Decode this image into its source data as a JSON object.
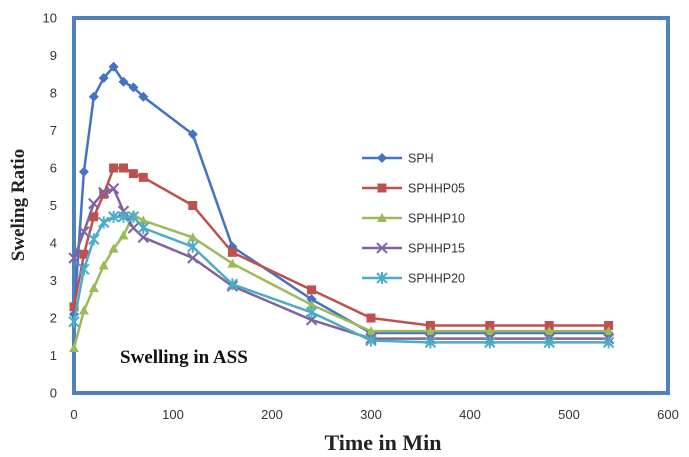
{
  "chart_data": {
    "type": "line",
    "title": "",
    "xlabel": "Time in Min",
    "ylabel": "Sweling Ratio",
    "annotation": "Swelling in ASS",
    "xlim": [
      0,
      600
    ],
    "ylim": [
      0,
      10
    ],
    "xticks": [
      "0",
      "100",
      "200",
      "300",
      "400",
      "500",
      "600"
    ],
    "yticks": [
      "0",
      "1",
      "2",
      "3",
      "4",
      "5",
      "6",
      "7",
      "8",
      "9",
      "10"
    ],
    "grid": false,
    "legend_position": "center-right",
    "series": [
      {
        "name": "SPH",
        "color": "#4472C4",
        "marker": "diamond",
        "x": [
          0,
          10,
          20,
          30,
          40,
          50,
          60,
          70,
          120,
          160,
          240,
          300,
          360,
          420,
          480,
          540
        ],
        "y": [
          2.1,
          5.9,
          7.9,
          8.4,
          8.7,
          8.3,
          8.15,
          7.9,
          6.9,
          3.9,
          2.5,
          1.6,
          1.6,
          1.6,
          1.6,
          1.6
        ]
      },
      {
        "name": "SPHHP05",
        "color": "#C0504D",
        "marker": "square",
        "x": [
          0,
          10,
          20,
          30,
          40,
          50,
          60,
          70,
          120,
          160,
          240,
          300,
          360,
          420,
          480,
          540
        ],
        "y": [
          2.3,
          3.7,
          4.7,
          5.3,
          6.0,
          6.0,
          5.85,
          5.75,
          5.0,
          3.75,
          2.75,
          2.0,
          1.8,
          1.8,
          1.8,
          1.8
        ]
      },
      {
        "name": "SPHHP10",
        "color": "#9BBB59",
        "marker": "triangle",
        "x": [
          0,
          10,
          20,
          30,
          40,
          50,
          60,
          70,
          120,
          160,
          240,
          300,
          360,
          420,
          480,
          540
        ],
        "y": [
          1.2,
          2.2,
          2.8,
          3.4,
          3.85,
          4.2,
          4.75,
          4.6,
          4.15,
          3.45,
          2.35,
          1.65,
          1.65,
          1.65,
          1.65,
          1.65
        ]
      },
      {
        "name": "SPHHP15",
        "color": "#8064A2",
        "marker": "x",
        "x": [
          0,
          10,
          20,
          30,
          40,
          50,
          60,
          70,
          120,
          160,
          240,
          300,
          360,
          420,
          480,
          540
        ],
        "y": [
          3.6,
          4.3,
          5.05,
          5.35,
          5.45,
          4.85,
          4.4,
          4.15,
          3.6,
          2.85,
          1.95,
          1.45,
          1.45,
          1.45,
          1.45,
          1.45
        ]
      },
      {
        "name": "SPHHP20",
        "color": "#4BACC6",
        "marker": "star",
        "x": [
          0,
          10,
          20,
          30,
          40,
          50,
          60,
          70,
          120,
          160,
          240,
          300,
          360,
          420,
          480,
          540
        ],
        "y": [
          1.9,
          3.3,
          4.1,
          4.55,
          4.7,
          4.7,
          4.7,
          4.4,
          3.9,
          2.9,
          2.15,
          1.4,
          1.35,
          1.35,
          1.35,
          1.35
        ]
      }
    ]
  }
}
